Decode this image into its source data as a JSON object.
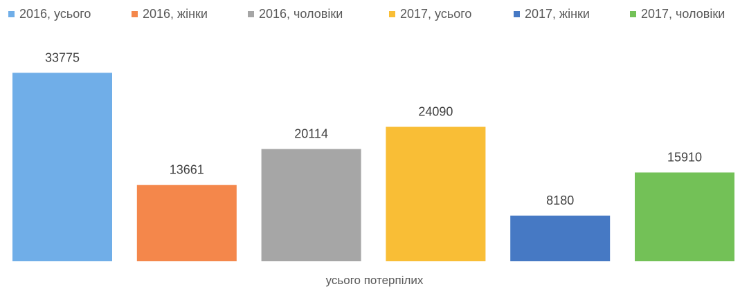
{
  "chart_data": {
    "type": "bar",
    "categories": [
      "усього потерпілих"
    ],
    "series": [
      {
        "name": "2016, усього",
        "values": [
          33775
        ],
        "color": "#70AEE8"
      },
      {
        "name": "2016, жінки",
        "values": [
          13661
        ],
        "color": "#F4874B"
      },
      {
        "name": "2016, чоловіки",
        "values": [
          20114
        ],
        "color": "#A6A6A6"
      },
      {
        "name": "2017, усього",
        "values": [
          24090
        ],
        "color": "#F9BE36"
      },
      {
        "name": "2017, жінки",
        "values": [
          8180
        ],
        "color": "#4679C4"
      },
      {
        "name": "2017, чоловіки",
        "values": [
          15910
        ],
        "color": "#73C157"
      }
    ],
    "xlabel": "усього потерпілих",
    "ylabel": "",
    "ylim": [
      0,
      40000
    ],
    "data_labels": true,
    "grid": false,
    "legend": "top"
  }
}
